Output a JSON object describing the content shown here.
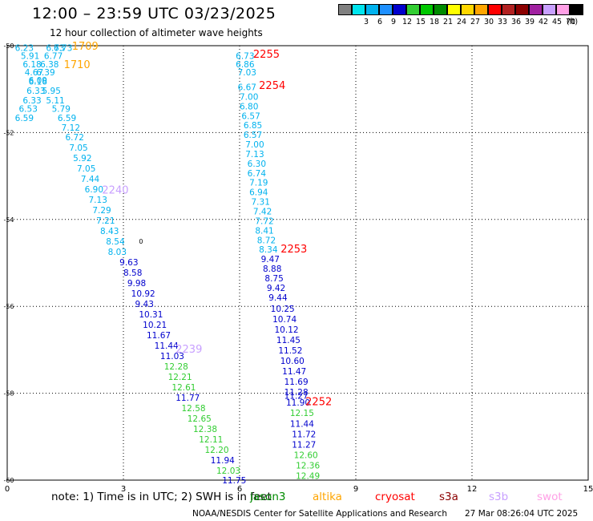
{
  "header": {
    "title": "12:00 – 23:59 UTC 03/23/2025",
    "subtitle": "12 hour collection of altimeter wave heights"
  },
  "color_scale": {
    "unit": "(ft)",
    "levels": [
      {
        "label": "",
        "color": "#808080"
      },
      {
        "label": "3",
        "color": "#00e5ee"
      },
      {
        "label": "6",
        "color": "#00b2ee"
      },
      {
        "label": "9",
        "color": "#1e90ff"
      },
      {
        "label": "12",
        "color": "#0000cd"
      },
      {
        "label": "15",
        "color": "#32cd32"
      },
      {
        "label": "18",
        "color": "#00c800"
      },
      {
        "label": "21",
        "color": "#008b00"
      },
      {
        "label": "24",
        "color": "#ffff00"
      },
      {
        "label": "27",
        "color": "#ffd700"
      },
      {
        "label": "30",
        "color": "#ffa500"
      },
      {
        "label": "33",
        "color": "#ff0000"
      },
      {
        "label": "36",
        "color": "#b22222"
      },
      {
        "label": "39",
        "color": "#8b0000"
      },
      {
        "label": "42",
        "color": "#a020a0"
      },
      {
        "label": "45",
        "color": "#c8a0ff"
      },
      {
        "label": "70",
        "color": "#ffa0e6"
      },
      {
        "label": "",
        "color": "#000000"
      }
    ]
  },
  "footer": {
    "note": "note:  1) Time is in UTC;  2) SWH is in feet",
    "satellites": [
      {
        "name": "jason3",
        "color": "#008b00"
      },
      {
        "name": "altika",
        "color": "#ffa500"
      },
      {
        "name": "cryosat",
        "color": "#ff0000"
      },
      {
        "name": "s3a",
        "color": "#8b0000"
      },
      {
        "name": "s3b",
        "color": "#c8a0ff"
      },
      {
        "name": "swot",
        "color": "#ffa0e6"
      }
    ],
    "credit": "NOAA/NESDIS Center for Satellite Applications and Research",
    "generated": "27 Mar 08:26:04 UTC 2025"
  },
  "chart_data": {
    "type": "scatter",
    "title": "12:00 – 23:59 UTC 03/23/2025",
    "xlim": [
      0,
      15
    ],
    "ylim": [
      -60,
      -50
    ],
    "x_ticks": [
      "0",
      "3",
      "6",
      "9",
      "12",
      "15"
    ],
    "y_ticks": [
      "-50",
      "-52",
      "-54",
      "-56",
      "-58",
      "-60"
    ],
    "grid": true,
    "pass_labels": [
      {
        "text": "1709",
        "x": 1.67,
        "y": -50.0,
        "color": "#ffa500"
      },
      {
        "text": "1710",
        "x": 1.46,
        "y": -50.42,
        "color": "#ffa500"
      },
      {
        "text": "2255",
        "x": 6.35,
        "y": -50.18,
        "color": "#ff0000"
      },
      {
        "text": "2254",
        "x": 6.5,
        "y": -50.9,
        "color": "#ff0000"
      },
      {
        "text": "2240",
        "x": 2.45,
        "y": -53.31,
        "color": "#c8a0ff"
      },
      {
        "text": "2253",
        "x": 7.06,
        "y": -54.67,
        "color": "#ff0000"
      },
      {
        "text": "2239",
        "x": 4.35,
        "y": -56.97,
        "color": "#c8a0ff"
      },
      {
        "text": "2252",
        "x": 7.7,
        "y": -58.18,
        "color": "#ff0000"
      }
    ],
    "series": [
      {
        "points": [
          {
            "x": 0.2,
            "y": -50.05,
            "v": "6.23"
          },
          {
            "x": 1.0,
            "y": -50.05,
            "v": "6.73"
          },
          {
            "x": 1.2,
            "y": -50.05,
            "v": "6.73"
          },
          {
            "x": 0.35,
            "y": -50.23,
            "v": "5.91"
          },
          {
            "x": 0.95,
            "y": -50.23,
            "v": "6.77"
          },
          {
            "x": 0.4,
            "y": -50.42,
            "v": "6.18"
          },
          {
            "x": 0.85,
            "y": -50.42,
            "v": "6.38"
          },
          {
            "x": 0.45,
            "y": -50.61,
            "v": "4.67"
          },
          {
            "x": 0.75,
            "y": -50.61,
            "v": "6.39"
          },
          {
            "x": 0.55,
            "y": -50.79,
            "v": "6.09"
          },
          {
            "x": 0.55,
            "y": -50.82,
            "v": "6.16"
          },
          {
            "x": 0.5,
            "y": -51.03,
            "v": "6.33"
          },
          {
            "x": 0.9,
            "y": -51.03,
            "v": "5.95"
          },
          {
            "x": 0.4,
            "y": -51.25,
            "v": "6.33"
          },
          {
            "x": 1.0,
            "y": -51.25,
            "v": "5.11"
          },
          {
            "x": 0.3,
            "y": -51.45,
            "v": "6.53"
          },
          {
            "x": 1.15,
            "y": -51.45,
            "v": "5.79"
          },
          {
            "x": 0.2,
            "y": -51.66,
            "v": "6.59"
          },
          {
            "x": 1.3,
            "y": -51.66,
            "v": "6.59"
          },
          {
            "x": 1.4,
            "y": -51.88,
            "v": "7.12"
          },
          {
            "x": 1.5,
            "y": -52.1,
            "v": "6.72"
          },
          {
            "x": 1.6,
            "y": -52.34,
            "v": "7.05"
          },
          {
            "x": 1.7,
            "y": -52.58,
            "v": "5.92"
          },
          {
            "x": 1.8,
            "y": -52.82,
            "v": "7.05"
          },
          {
            "x": 1.9,
            "y": -53.06,
            "v": "7.44"
          },
          {
            "x": 2.0,
            "y": -53.3,
            "v": "6.90"
          },
          {
            "x": 2.1,
            "y": -53.54,
            "v": "7.13"
          },
          {
            "x": 2.2,
            "y": -53.78,
            "v": "7.29"
          },
          {
            "x": 2.3,
            "y": -54.02,
            "v": "7.21"
          },
          {
            "x": 2.4,
            "y": -54.26,
            "v": "8.43"
          },
          {
            "x": 2.55,
            "y": -54.5,
            "v": "8.54"
          },
          {
            "x": 2.6,
            "y": -54.74,
            "v": "8.03"
          }
        ]
      },
      {
        "points": [
          {
            "x": 2.9,
            "y": -54.98,
            "v": "9.63"
          },
          {
            "x": 3.0,
            "y": -55.22,
            "v": "8.58"
          },
          {
            "x": 3.1,
            "y": -55.46,
            "v": "9.98"
          },
          {
            "x": 3.2,
            "y": -55.7,
            "v": "10.92"
          },
          {
            "x": 3.3,
            "y": -55.94,
            "v": "9.43"
          },
          {
            "x": 3.4,
            "y": -56.18,
            "v": "10.31"
          },
          {
            "x": 3.5,
            "y": -56.42,
            "v": "10.21"
          },
          {
            "x": 3.6,
            "y": -56.66,
            "v": "11.67"
          },
          {
            "x": 3.8,
            "y": -56.9,
            "v": "11.44"
          },
          {
            "x": 3.95,
            "y": -57.14,
            "v": "11.03"
          }
        ]
      },
      {
        "points": [
          {
            "x": 4.05,
            "y": -57.38,
            "v": "12.28"
          },
          {
            "x": 4.15,
            "y": -57.62,
            "v": "12.21"
          },
          {
            "x": 4.25,
            "y": -57.86,
            "v": "12.61"
          }
        ]
      },
      {
        "points": [
          {
            "x": 4.35,
            "y": -58.1,
            "v": "11.77"
          }
        ]
      },
      {
        "points": [
          {
            "x": 4.5,
            "y": -58.34,
            "v": "12.58"
          },
          {
            "x": 4.65,
            "y": -58.58,
            "v": "12.65"
          },
          {
            "x": 4.8,
            "y": -58.82,
            "v": "12.38"
          },
          {
            "x": 4.95,
            "y": -59.06,
            "v": "12.11"
          },
          {
            "x": 5.1,
            "y": -59.3,
            "v": "12.20"
          }
        ]
      },
      {
        "points": [
          {
            "x": 5.25,
            "y": -59.54,
            "v": "11.94"
          }
        ]
      },
      {
        "points": [
          {
            "x": 5.4,
            "y": -59.78,
            "v": "12.03"
          }
        ]
      },
      {
        "points": [
          {
            "x": 5.55,
            "y": -60.0,
            "v": "11.75"
          }
        ]
      },
      {
        "points": [
          {
            "x": 5.9,
            "y": -50.23,
            "v": "6.73"
          },
          {
            "x": 5.9,
            "y": -50.42,
            "v": "6.86"
          },
          {
            "x": 5.95,
            "y": -50.61,
            "v": "7.03"
          },
          {
            "x": 5.95,
            "y": -50.95,
            "v": "6.67"
          },
          {
            "x": 6.0,
            "y": -51.17,
            "v": "7.00"
          },
          {
            "x": 6.0,
            "y": -51.39,
            "v": "6.80"
          },
          {
            "x": 6.05,
            "y": -51.61,
            "v": "6.57"
          },
          {
            "x": 6.1,
            "y": -51.83,
            "v": "6.85"
          },
          {
            "x": 6.1,
            "y": -52.05,
            "v": "6.57"
          },
          {
            "x": 6.15,
            "y": -52.27,
            "v": "7.00"
          },
          {
            "x": 6.15,
            "y": -52.49,
            "v": "7.13"
          },
          {
            "x": 6.2,
            "y": -52.71,
            "v": "6.30"
          },
          {
            "x": 6.2,
            "y": -52.93,
            "v": "6.74"
          },
          {
            "x": 6.25,
            "y": -53.15,
            "v": "7.19"
          },
          {
            "x": 6.25,
            "y": -53.37,
            "v": "6.94"
          },
          {
            "x": 6.3,
            "y": -53.59,
            "v": "7.31"
          },
          {
            "x": 6.35,
            "y": -53.81,
            "v": "7.42"
          },
          {
            "x": 6.4,
            "y": -54.03,
            "v": "7.72"
          },
          {
            "x": 6.4,
            "y": -54.25,
            "v": "8.41"
          },
          {
            "x": 6.45,
            "y": -54.47,
            "v": "8.72"
          },
          {
            "x": 6.5,
            "y": -54.69,
            "v": "8.34"
          }
        ]
      },
      {
        "points": [
          {
            "x": 6.55,
            "y": -54.91,
            "v": "9.47"
          },
          {
            "x": 6.6,
            "y": -55.13,
            "v": "8.88"
          },
          {
            "x": 6.65,
            "y": -55.35,
            "v": "8.75"
          },
          {
            "x": 6.7,
            "y": -55.57,
            "v": "9.42"
          },
          {
            "x": 6.75,
            "y": -55.79,
            "v": "9.44"
          },
          {
            "x": 6.8,
            "y": -56.05,
            "v": "10.25"
          },
          {
            "x": 6.85,
            "y": -56.29,
            "v": "10.74"
          },
          {
            "x": 6.9,
            "y": -56.53,
            "v": "10.12"
          },
          {
            "x": 6.95,
            "y": -56.77,
            "v": "11.45"
          },
          {
            "x": 7.0,
            "y": -57.01,
            "v": "11.52"
          },
          {
            "x": 7.05,
            "y": -57.25,
            "v": "10.60"
          },
          {
            "x": 7.1,
            "y": -57.49,
            "v": "11.47"
          },
          {
            "x": 7.15,
            "y": -57.73,
            "v": "11.69"
          }
        ]
      },
      {
        "points": [
          {
            "x": 7.15,
            "y": -57.97,
            "v": "11.28"
          },
          {
            "x": 7.15,
            "y": -58.05,
            "v": "11.27"
          },
          {
            "x": 7.2,
            "y": -58.21,
            "v": "11.90"
          }
        ]
      },
      {
        "points": [
          {
            "x": 7.3,
            "y": -58.45,
            "v": "12.15"
          }
        ]
      },
      {
        "points": [
          {
            "x": 7.3,
            "y": -58.7,
            "v": "11.44"
          },
          {
            "x": 7.35,
            "y": -58.94,
            "v": "11.72"
          },
          {
            "x": 7.35,
            "y": -59.18,
            "v": "11.27"
          }
        ]
      },
      {
        "points": [
          {
            "x": 7.4,
            "y": -59.42,
            "v": "12.60"
          },
          {
            "x": 7.45,
            "y": -59.66,
            "v": "12.36"
          },
          {
            "x": 7.45,
            "y": -59.9,
            "v": "12.49"
          }
        ]
      }
    ],
    "point_colors": [
      "#00b2ee",
      "#0000cd",
      "#32cd32",
      "#0000cd",
      "#32cd32",
      "#0000cd",
      "#32cd32",
      "#0000cd",
      "#00b2ee",
      "#0000cd",
      "#0000cd",
      "#32cd32",
      "#0000cd",
      "#32cd32"
    ],
    "contour_labels": [
      {
        "text": "0",
        "x": 3.4,
        "y": -54.5
      }
    ]
  }
}
